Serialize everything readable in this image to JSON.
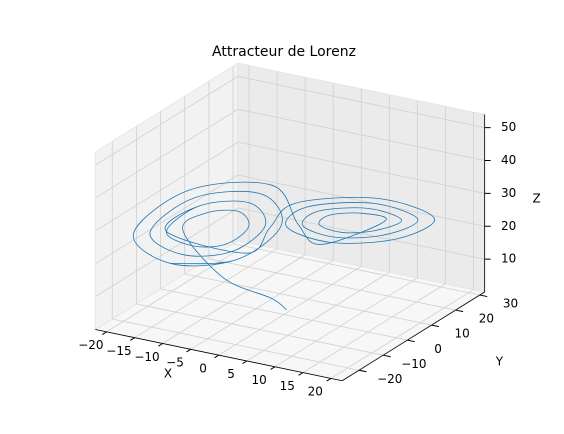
{
  "chart_data": {
    "type": "line3d",
    "title": "Attracteur de Lorenz",
    "x_label": "X",
    "y_label": "Y",
    "z_label": "Z",
    "color": "#1f77b4",
    "grid": true,
    "xlim": [
      -22,
      22
    ],
    "ylim": [
      -27,
      32
    ],
    "zlim": [
      0,
      54
    ],
    "xticks": [
      {
        "value": -20,
        "label": "−20"
      },
      {
        "value": -15,
        "label": "−15"
      },
      {
        "value": -10,
        "label": "−10"
      },
      {
        "value": -5,
        "label": "−5"
      },
      0,
      5,
      10,
      15,
      20
    ],
    "yticks": [
      {
        "value": -20,
        "label": "−20"
      },
      {
        "value": -10,
        "label": "−10"
      },
      0,
      10,
      20,
      30
    ],
    "zticks": [
      10,
      20,
      30,
      40,
      50
    ],
    "x": [
      0,
      -1,
      -6,
      -12.5,
      -10.5,
      -6.5,
      -4.5,
      -6.5,
      -10.5,
      -14.5,
      -11.5,
      -5.5,
      -2.5,
      -5.5,
      -11.5,
      -16.5,
      -12.5,
      -4.5,
      -0.5,
      -4.5,
      -12.5,
      -18.5,
      -13.5,
      -3.5,
      1.5,
      4,
      12.5,
      10.5,
      6.5,
      4.5,
      6.5,
      10.5,
      14.5,
      11.5,
      5.5,
      2.5,
      5.5,
      11.5,
      16.5,
      12.5,
      4.5,
      0.5,
      4.5,
      12.5,
      18.5,
      13.5,
      3.5,
      -1.5,
      -4,
      -14.5,
      -11.5,
      -5.5,
      -2.5,
      -5.5,
      -11.5,
      -16.5,
      -12.5,
      -4.5,
      -0.5,
      -4.5,
      -12.5
    ],
    "y": [
      1,
      -3,
      -11,
      -12.8,
      -8.1,
      -3.8,
      -4.2,
      -8.9,
      -13.2,
      -15,
      -8,
      -1.5,
      -2,
      -9,
      -15.5,
      -17.1,
      -7.8,
      0.9,
      0.1,
      -9.2,
      -17.9,
      -19.3,
      -7.6,
      3.2,
      2.3,
      6,
      12.8,
      8.1,
      3.8,
      4.2,
      8.9,
      13.2,
      15,
      8,
      1.5,
      2,
      9,
      15.5,
      17.1,
      7.8,
      -0.9,
      -0.1,
      9.2,
      17.9,
      19.3,
      7.6,
      -3.2,
      -2.3,
      -6,
      -15,
      -8,
      -1.5,
      -2,
      -9,
      -15.5,
      -17.1,
      -7.8,
      0.9,
      0.1,
      -9.2,
      -17.9
    ],
    "z": [
      1,
      6,
      14,
      27,
      30.8,
      30.8,
      27,
      23.2,
      23.2,
      27,
      32.7,
      32.7,
      27,
      21.3,
      21.3,
      27,
      34.7,
      34.7,
      27,
      19.3,
      19.3,
      27,
      36.6,
      36.6,
      27,
      20,
      27,
      30.8,
      30.8,
      27,
      23.2,
      23.2,
      27,
      32.7,
      32.7,
      27,
      21.3,
      21.3,
      27,
      34.7,
      34.7,
      27,
      19.3,
      19.3,
      27,
      36.6,
      36.6,
      27,
      20,
      27,
      32.7,
      32.7,
      27,
      21.3,
      21.3,
      27,
      34.7,
      34.7,
      27,
      19.3,
      19.3
    ]
  }
}
